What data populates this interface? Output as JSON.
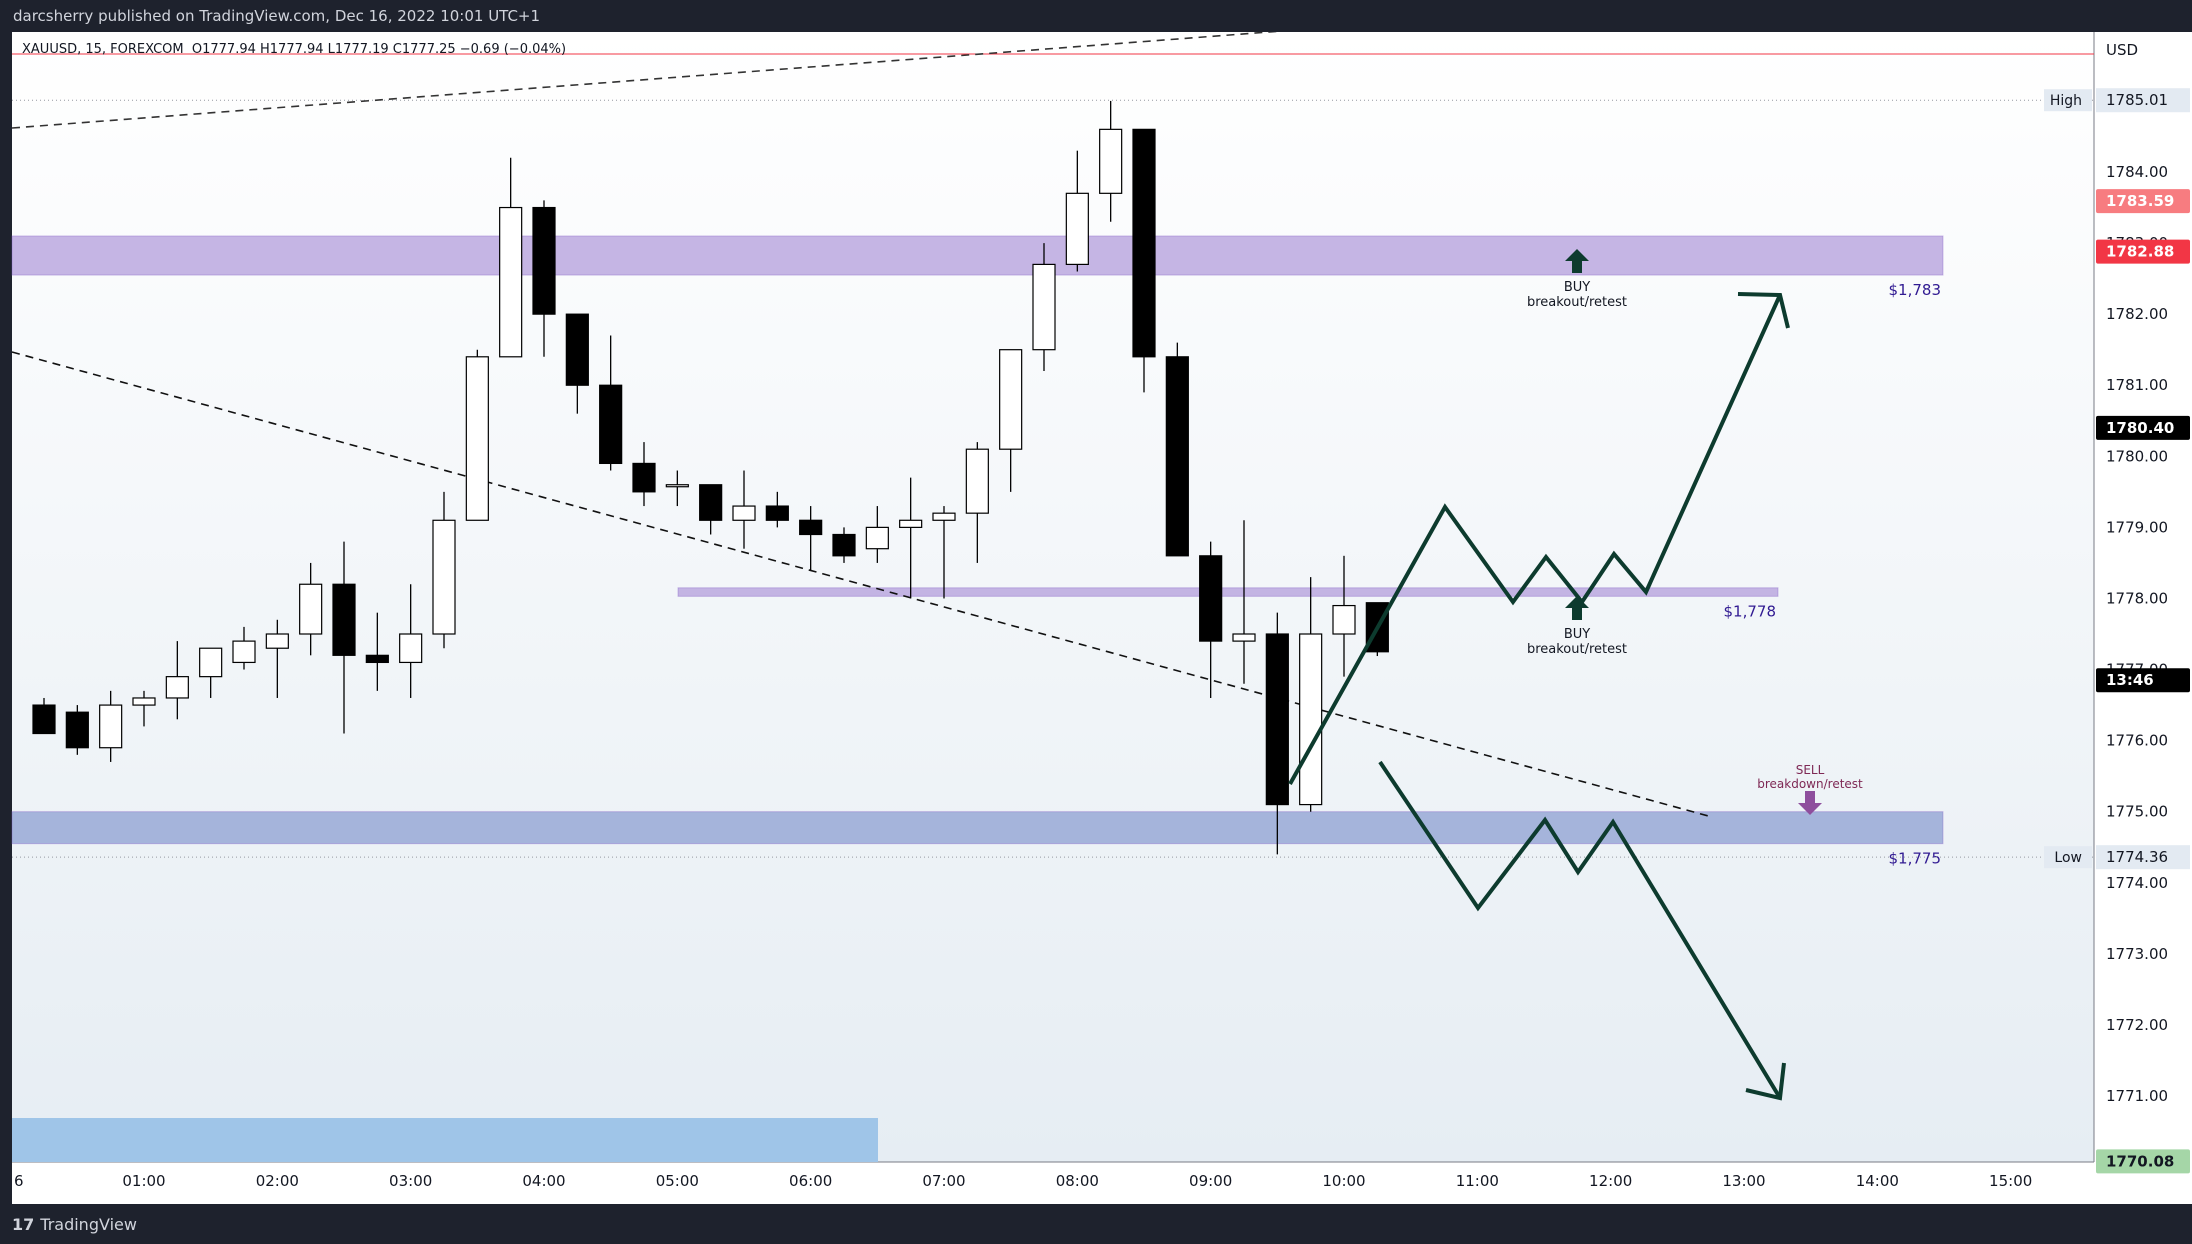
{
  "header": {
    "published": "darcsherry published on TradingView.com, Dec 16, 2022 10:01 UTC+1"
  },
  "footer": {
    "brand": "TradingView"
  },
  "legend": {
    "symbol": "XAUUSD, 15, FOREXCOM",
    "ohlc": "O1777.94  H1777.94  L1777.19  C1777.25  −0.69 (−0.04%)"
  },
  "colors": {
    "background": "#f2f5f9",
    "zone": "#b39ddb",
    "zone_low": "#8c9fd1",
    "path": "#0d3b2e",
    "sell": "#7e2955",
    "buy": "#0d3b2e"
  },
  "chart_data": {
    "type": "candlestick",
    "currency": "USD",
    "ylim": [
      1770.0,
      1786.5
    ],
    "y_ticks": [
      1771.0,
      1772.0,
      1773.0,
      1774.0,
      1775.0,
      1776.0,
      1777.0,
      1778.0,
      1779.0,
      1780.0,
      1781.0,
      1782.0,
      1783.0,
      1784.0
    ],
    "x_ticks": [
      "01:00",
      "02:00",
      "03:00",
      "04:00",
      "05:00",
      "06:00",
      "07:00",
      "08:00",
      "09:00",
      "10:00",
      "11:00",
      "12:00",
      "13:00",
      "14:00",
      "15:00"
    ],
    "x_first_label": "6",
    "candles": [
      {
        "t": "00:15",
        "o": 1776.5,
        "h": 1776.6,
        "l": 1776.1,
        "c": 1776.1
      },
      {
        "t": "00:30",
        "o": 1776.4,
        "h": 1776.5,
        "l": 1775.8,
        "c": 1775.9
      },
      {
        "t": "00:45",
        "o": 1775.9,
        "h": 1776.7,
        "l": 1775.7,
        "c": 1776.5
      },
      {
        "t": "01:00",
        "o": 1776.5,
        "h": 1776.7,
        "l": 1776.2,
        "c": 1776.6
      },
      {
        "t": "01:15",
        "o": 1776.6,
        "h": 1777.4,
        "l": 1776.3,
        "c": 1776.9
      },
      {
        "t": "01:30",
        "o": 1776.9,
        "h": 1777.3,
        "l": 1776.6,
        "c": 1777.3
      },
      {
        "t": "01:45",
        "o": 1777.1,
        "h": 1777.6,
        "l": 1777.0,
        "c": 1777.4
      },
      {
        "t": "02:00",
        "o": 1777.3,
        "h": 1777.7,
        "l": 1776.6,
        "c": 1777.5
      },
      {
        "t": "02:15",
        "o": 1777.5,
        "h": 1778.5,
        "l": 1777.2,
        "c": 1778.2
      },
      {
        "t": "02:30",
        "o": 1778.2,
        "h": 1778.8,
        "l": 1776.1,
        "c": 1777.2
      },
      {
        "t": "02:45",
        "o": 1777.2,
        "h": 1777.8,
        "l": 1776.7,
        "c": 1777.1
      },
      {
        "t": "03:00",
        "o": 1777.1,
        "h": 1778.2,
        "l": 1776.6,
        "c": 1777.5
      },
      {
        "t": "03:15",
        "o": 1777.5,
        "h": 1779.5,
        "l": 1777.3,
        "c": 1779.1
      },
      {
        "t": "03:30",
        "o": 1779.1,
        "h": 1781.5,
        "l": 1779.1,
        "c": 1781.4
      },
      {
        "t": "03:45",
        "o": 1781.4,
        "h": 1784.2,
        "l": 1781.4,
        "c": 1783.5
      },
      {
        "t": "04:00",
        "o": 1783.5,
        "h": 1783.6,
        "l": 1781.4,
        "c": 1782.0
      },
      {
        "t": "04:15",
        "o": 1782.0,
        "h": 1782.0,
        "l": 1780.6,
        "c": 1781.0
      },
      {
        "t": "04:30",
        "o": 1781.0,
        "h": 1781.7,
        "l": 1779.8,
        "c": 1779.9
      },
      {
        "t": "04:45",
        "o": 1779.9,
        "h": 1780.2,
        "l": 1779.3,
        "c": 1779.5
      },
      {
        "t": "05:00",
        "o": 1779.6,
        "h": 1779.8,
        "l": 1779.3,
        "c": 1779.6
      },
      {
        "t": "05:15",
        "o": 1779.6,
        "h": 1779.6,
        "l": 1778.9,
        "c": 1779.1
      },
      {
        "t": "05:30",
        "o": 1779.1,
        "h": 1779.8,
        "l": 1778.7,
        "c": 1779.3
      },
      {
        "t": "05:45",
        "o": 1779.3,
        "h": 1779.5,
        "l": 1779.0,
        "c": 1779.1
      },
      {
        "t": "06:00",
        "o": 1779.1,
        "h": 1779.3,
        "l": 1778.4,
        "c": 1778.9
      },
      {
        "t": "06:15",
        "o": 1778.9,
        "h": 1779.0,
        "l": 1778.5,
        "c": 1778.6
      },
      {
        "t": "06:30",
        "o": 1778.7,
        "h": 1779.3,
        "l": 1778.5,
        "c": 1779.0
      },
      {
        "t": "06:45",
        "o": 1779.0,
        "h": 1779.7,
        "l": 1778.0,
        "c": 1779.1
      },
      {
        "t": "07:00",
        "o": 1779.1,
        "h": 1779.3,
        "l": 1778.0,
        "c": 1779.2
      },
      {
        "t": "07:15",
        "o": 1779.2,
        "h": 1780.2,
        "l": 1778.5,
        "c": 1780.1
      },
      {
        "t": "07:30",
        "o": 1780.1,
        "h": 1781.5,
        "l": 1779.5,
        "c": 1781.5
      },
      {
        "t": "07:45",
        "o": 1781.5,
        "h": 1783.0,
        "l": 1781.2,
        "c": 1782.7
      },
      {
        "t": "08:00",
        "o": 1782.7,
        "h": 1784.3,
        "l": 1782.6,
        "c": 1783.7
      },
      {
        "t": "08:15",
        "o": 1783.7,
        "h": 1785.0,
        "l": 1783.3,
        "c": 1784.6
      },
      {
        "t": "08:30",
        "o": 1784.6,
        "h": 1784.6,
        "l": 1780.9,
        "c": 1781.4
      },
      {
        "t": "08:45",
        "o": 1781.4,
        "h": 1781.6,
        "l": 1778.6,
        "c": 1778.6
      },
      {
        "t": "09:00",
        "o": 1778.6,
        "h": 1778.8,
        "l": 1776.6,
        "c": 1777.4
      },
      {
        "t": "09:15",
        "o": 1777.4,
        "h": 1779.1,
        "l": 1776.8,
        "c": 1777.5
      },
      {
        "t": "09:30",
        "o": 1777.5,
        "h": 1777.8,
        "l": 1774.4,
        "c": 1775.1
      },
      {
        "t": "09:45",
        "o": 1775.1,
        "h": 1778.3,
        "l": 1775.0,
        "c": 1777.5
      },
      {
        "t": "10:00",
        "o": 1777.5,
        "h": 1778.6,
        "l": 1776.9,
        "c": 1777.9
      },
      {
        "t": "10:15",
        "o": 1777.94,
        "h": 1777.94,
        "l": 1777.19,
        "c": 1777.25
      }
    ],
    "zones": [
      {
        "from": 1782.55,
        "to": 1783.1,
        "label": "$1,783",
        "fill": "#b39ddb"
      },
      {
        "from": 1778.03,
        "to": 1778.15,
        "label": "$1,778",
        "fill": "#b39ddb"
      },
      {
        "from": 1774.55,
        "to": 1775.0,
        "label": "$1,775",
        "fill": "#8c9fd1"
      }
    ],
    "levels": {
      "high": "1785.01",
      "low": "1774.36",
      "high_label": "High",
      "low_label": "Low"
    },
    "price_badges": [
      {
        "value": "1783.59",
        "color": "#f77c80"
      },
      {
        "value": "1782.88",
        "color": "#f23645"
      },
      {
        "value": "1780.40",
        "color": "#000000"
      },
      {
        "value": "13:46",
        "color": "#000000"
      },
      {
        "value": "1770.08",
        "color": "#a5d6a7"
      }
    ],
    "annotations": [
      {
        "text": "BUY",
        "sub": "breakout/retest",
        "type": "buy"
      },
      {
        "text": "BUY",
        "sub": "breakout/retest",
        "type": "buy"
      },
      {
        "text": "SELL",
        "sub": "breakdown/retest",
        "type": "sell"
      }
    ]
  }
}
